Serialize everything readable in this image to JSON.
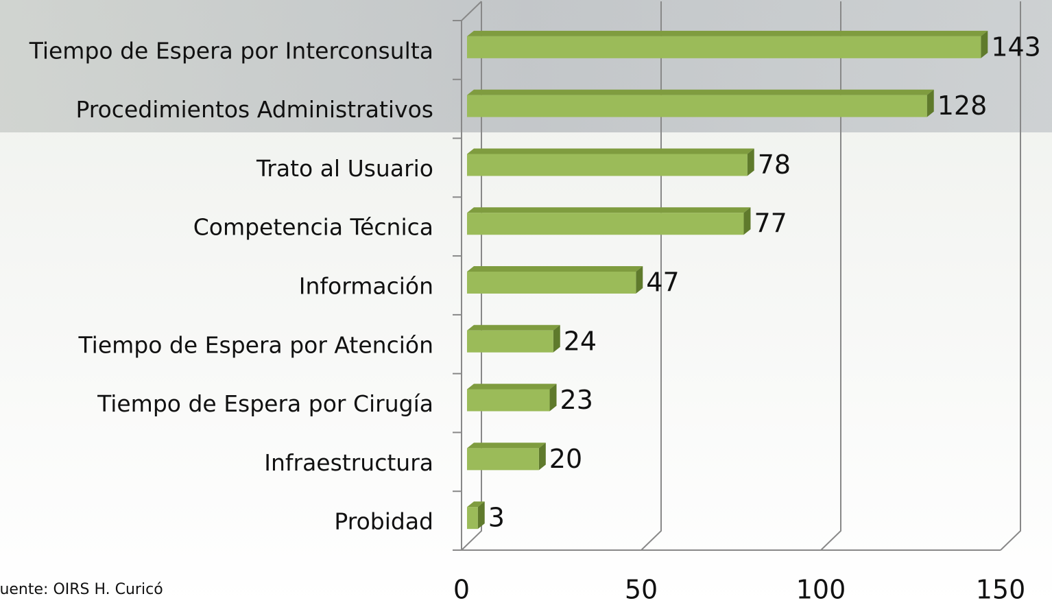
{
  "chart_data": {
    "type": "bar3d",
    "categories": [
      "Tiempo de Espera por Interconsulta",
      "Procedimientos Administrativos",
      "Trato al Usuario",
      "Competencia Técnica",
      "Información",
      "Tiempo de Espera por Atención",
      "Tiempo de Espera por Cirugía",
      "Infraestructura",
      "Probidad"
    ],
    "values": [
      143,
      128,
      78,
      77,
      47,
      24,
      23,
      20,
      3
    ],
    "color": "#9bbb59",
    "xlim": [
      0,
      150
    ],
    "xticks": [
      0,
      50,
      100,
      150
    ],
    "grid": true,
    "source": "Fuente: OIRS H. Curicó"
  }
}
